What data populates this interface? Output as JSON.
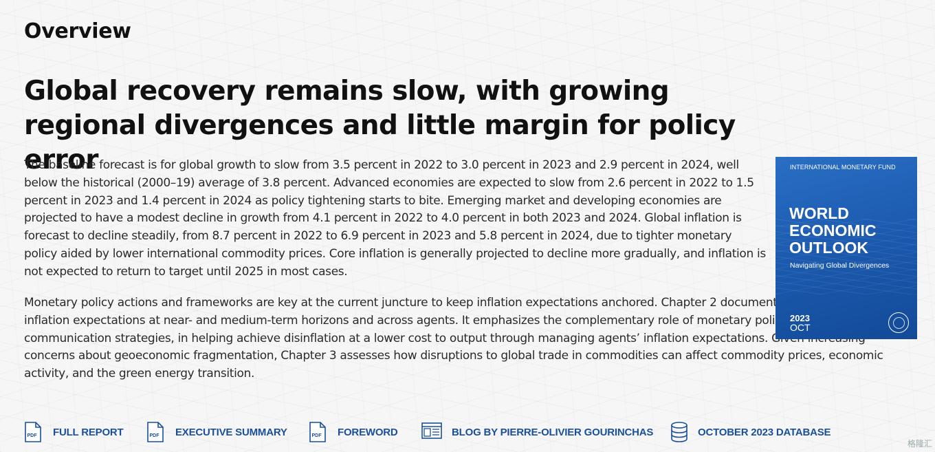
{
  "overview": {
    "section_title": "Overview",
    "headline": "Global recovery remains slow, with growing regional divergences and little margin for policy error",
    "paragraphs": [
      "The baseline forecast is for global growth to slow from 3.5 percent in 2022 to 3.0 percent in 2023 and 2.9 percent in 2024, well below the historical (2000–19) average of 3.8 percent. Advanced economies are expected to slow from 2.6 percent in 2022 to 1.5 percent in 2023 and 1.4 percent in 2024 as policy tightening starts to bite. Emerging market and developing economies are projected to have a modest decline in growth from 4.1 percent in 2022 to 4.0 percent in both 2023 and 2024. Global inflation is forecast to decline steadily, from 8.7 percent in 2022 to 6.9 percent in 2023 and 5.8 percent in 2024, due to tighter monetary policy aided by lower international commodity prices. Core inflation is generally projected to decline more gradually, and inflation is not expected to return to target until 2025 in most cases.",
      "Monetary policy actions and frameworks are key at the current juncture to keep inflation expectations anchored. Chapter 2 documents recent trends in inflation expectations at near- and medium-term horizons and across agents. It emphasizes the complementary role of monetary policy frameworks, including communication strategies, in helping achieve disinflation at a lower cost to output through managing agents’ inflation expectations. Given increasing concerns about geoeconomic fragmentation, Chapter 3 assesses how disruptions to global trade in commodities can affect commodity prices, economic activity, and the green energy transition."
    ]
  },
  "cover": {
    "org": "INTERNATIONAL MONETARY FUND",
    "title_lines": [
      "WORLD",
      "ECONOMIC",
      "OUTLOOK"
    ],
    "subtitle": "Navigating Global Divergences",
    "year": "2023",
    "month": "OCT",
    "colors": {
      "background": "#1c5bb0",
      "text": "#ffffff"
    }
  },
  "links": [
    {
      "label": "FULL REPORT",
      "icon": "pdf-icon"
    },
    {
      "label": "EXECUTIVE SUMMARY",
      "icon": "pdf-icon"
    },
    {
      "label": "FOREWORD",
      "icon": "pdf-icon"
    },
    {
      "label": "BLOG BY PIERRE-OLIVIER GOURINCHAS",
      "icon": "blog-icon"
    },
    {
      "label": "OCTOBER 2023 DATABASE",
      "icon": "database-icon"
    }
  ],
  "icon_text": {
    "pdf": "PDF"
  },
  "watermark": "格隆汇",
  "colors": {
    "link": "#1a4f9a",
    "text": "#2a2a2a",
    "heading": "#111111"
  }
}
